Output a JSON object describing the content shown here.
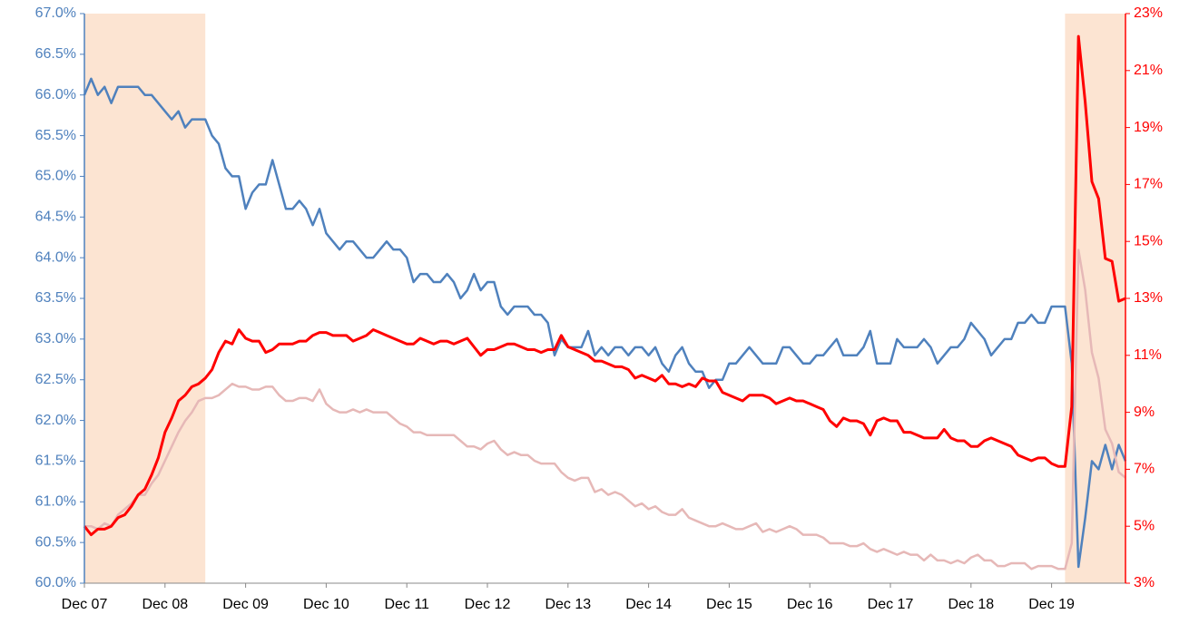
{
  "chart_data": {
    "type": "line",
    "categories": [
      "Dec 07",
      null,
      null,
      null,
      null,
      null,
      null,
      null,
      null,
      null,
      null,
      null,
      "Dec 08",
      null,
      null,
      null,
      null,
      null,
      null,
      null,
      null,
      null,
      null,
      null,
      "Dec 09",
      null,
      null,
      null,
      null,
      null,
      null,
      null,
      null,
      null,
      null,
      null,
      "Dec 10",
      null,
      null,
      null,
      null,
      null,
      null,
      null,
      null,
      null,
      null,
      null,
      "Dec 11",
      null,
      null,
      null,
      null,
      null,
      null,
      null,
      null,
      null,
      null,
      null,
      "Dec 12",
      null,
      null,
      null,
      null,
      null,
      null,
      null,
      null,
      null,
      null,
      null,
      "Dec 13",
      null,
      null,
      null,
      null,
      null,
      null,
      null,
      null,
      null,
      null,
      null,
      "Dec 14",
      null,
      null,
      null,
      null,
      null,
      null,
      null,
      null,
      null,
      null,
      null,
      "Dec 15",
      null,
      null,
      null,
      null,
      null,
      null,
      null,
      null,
      null,
      null,
      null,
      "Dec 16",
      null,
      null,
      null,
      null,
      null,
      null,
      null,
      null,
      null,
      null,
      null,
      "Dec 17",
      null,
      null,
      null,
      null,
      null,
      null,
      null,
      null,
      null,
      null,
      null,
      "Dec 18",
      null,
      null,
      null,
      null,
      null,
      null,
      null,
      null,
      null,
      null,
      null,
      "Dec 19",
      null,
      null,
      null,
      null,
      null,
      null,
      null,
      null,
      null,
      null,
      null
    ],
    "shaded_ranges": [
      [
        0,
        18
      ],
      [
        146,
        155
      ]
    ],
    "shade_color": "#fce4d2",
    "series": [
      {
        "color": "#4f81bd",
        "axis": "y",
        "values": [
          66.0,
          66.2,
          66.0,
          66.1,
          65.9,
          66.1,
          66.1,
          66.1,
          66.1,
          66.0,
          66.0,
          65.9,
          65.8,
          65.7,
          65.8,
          65.6,
          65.7,
          65.7,
          65.7,
          65.5,
          65.4,
          65.1,
          65.0,
          65.0,
          64.6,
          64.8,
          64.9,
          64.9,
          65.2,
          64.9,
          64.6,
          64.6,
          64.7,
          64.6,
          64.4,
          64.6,
          64.3,
          64.2,
          64.1,
          64.2,
          64.2,
          64.1,
          64.0,
          64.0,
          64.1,
          64.2,
          64.1,
          64.1,
          64.0,
          63.7,
          63.8,
          63.8,
          63.7,
          63.7,
          63.8,
          63.7,
          63.5,
          63.6,
          63.8,
          63.6,
          63.7,
          63.7,
          63.4,
          63.3,
          63.4,
          63.4,
          63.4,
          63.3,
          63.3,
          63.2,
          62.8,
          63.0,
          62.9,
          62.9,
          62.9,
          63.1,
          62.8,
          62.9,
          62.8,
          62.9,
          62.9,
          62.8,
          62.9,
          62.9,
          62.8,
          62.9,
          62.7,
          62.6,
          62.8,
          62.9,
          62.7,
          62.6,
          62.6,
          62.4,
          62.5,
          62.5,
          62.7,
          62.7,
          62.8,
          62.9,
          62.8,
          62.7,
          62.7,
          62.7,
          62.9,
          62.9,
          62.8,
          62.7,
          62.7,
          62.8,
          62.8,
          62.9,
          63.0,
          62.8,
          62.8,
          62.8,
          62.9,
          63.1,
          62.7,
          62.7,
          62.7,
          63.0,
          62.9,
          62.9,
          62.9,
          63.0,
          62.9,
          62.7,
          62.8,
          62.9,
          62.9,
          63.0,
          63.2,
          63.1,
          63.0,
          62.8,
          62.9,
          63.0,
          63.0,
          63.2,
          63.2,
          63.3,
          63.2,
          63.2,
          63.4,
          63.4,
          63.4,
          62.7,
          60.2,
          60.8,
          61.5,
          61.4,
          61.7,
          61.4,
          61.7,
          61.5
        ]
      },
      {
        "color": "#e6b8b7",
        "axis": "y2",
        "values": [
          5.0,
          5.0,
          4.9,
          5.1,
          5.0,
          5.4,
          5.6,
          5.8,
          6.1,
          6.1,
          6.5,
          6.8,
          7.3,
          7.8,
          8.3,
          8.7,
          9.0,
          9.4,
          9.5,
          9.5,
          9.6,
          9.8,
          10.0,
          9.9,
          9.9,
          9.8,
          9.8,
          9.9,
          9.9,
          9.6,
          9.4,
          9.4,
          9.5,
          9.5,
          9.4,
          9.8,
          9.3,
          9.1,
          9.0,
          9.0,
          9.1,
          9.0,
          9.1,
          9.0,
          9.0,
          9.0,
          8.8,
          8.6,
          8.5,
          8.3,
          8.3,
          8.2,
          8.2,
          8.2,
          8.2,
          8.2,
          8.0,
          7.8,
          7.8,
          7.7,
          7.9,
          8.0,
          7.7,
          7.5,
          7.6,
          7.5,
          7.5,
          7.3,
          7.2,
          7.2,
          7.2,
          6.9,
          6.7,
          6.6,
          6.7,
          6.7,
          6.2,
          6.3,
          6.1,
          6.2,
          6.1,
          5.9,
          5.7,
          5.8,
          5.6,
          5.7,
          5.5,
          5.4,
          5.4,
          5.6,
          5.3,
          5.2,
          5.1,
          5.0,
          5.0,
          5.1,
          5.0,
          4.9,
          4.9,
          5.0,
          5.1,
          4.8,
          4.9,
          4.8,
          4.9,
          5.0,
          4.9,
          4.7,
          4.7,
          4.7,
          4.6,
          4.4,
          4.4,
          4.4,
          4.3,
          4.3,
          4.4,
          4.2,
          4.1,
          4.2,
          4.1,
          4.0,
          4.1,
          4.0,
          4.0,
          3.8,
          4.0,
          3.8,
          3.8,
          3.7,
          3.8,
          3.7,
          3.9,
          4.0,
          3.8,
          3.8,
          3.6,
          3.6,
          3.7,
          3.7,
          3.7,
          3.5,
          3.6,
          3.6,
          3.6,
          3.5,
          3.5,
          4.4,
          14.7,
          13.3,
          11.1,
          10.2,
          8.4,
          7.9,
          6.9,
          6.7
        ]
      },
      {
        "color": "#ff0000",
        "axis": "y2",
        "values": [
          5.0,
          4.7,
          4.9,
          4.9,
          5.0,
          5.3,
          5.4,
          5.7,
          6.1,
          6.3,
          6.8,
          7.4,
          8.3,
          8.8,
          9.4,
          9.6,
          9.9,
          10.0,
          10.2,
          10.5,
          11.1,
          11.5,
          11.4,
          11.9,
          11.6,
          11.5,
          11.5,
          11.1,
          11.2,
          11.4,
          11.4,
          11.4,
          11.5,
          11.5,
          11.7,
          11.8,
          11.8,
          11.7,
          11.7,
          11.7,
          11.5,
          11.6,
          11.7,
          11.9,
          11.8,
          11.7,
          11.6,
          11.5,
          11.4,
          11.4,
          11.6,
          11.5,
          11.4,
          11.5,
          11.5,
          11.4,
          11.5,
          11.6,
          11.3,
          11.0,
          11.2,
          11.2,
          11.3,
          11.4,
          11.4,
          11.3,
          11.2,
          11.2,
          11.1,
          11.2,
          11.2,
          11.7,
          11.3,
          11.2,
          11.1,
          11.0,
          10.8,
          10.8,
          10.7,
          10.6,
          10.6,
          10.5,
          10.2,
          10.3,
          10.2,
          10.1,
          10.3,
          10.0,
          10.0,
          9.9,
          10.0,
          9.9,
          10.2,
          10.1,
          10.1,
          9.7,
          9.6,
          9.5,
          9.4,
          9.6,
          9.6,
          9.6,
          9.5,
          9.3,
          9.4,
          9.5,
          9.4,
          9.4,
          9.3,
          9.2,
          9.1,
          8.7,
          8.5,
          8.8,
          8.7,
          8.7,
          8.6,
          8.2,
          8.7,
          8.8,
          8.7,
          8.7,
          8.3,
          8.3,
          8.2,
          8.1,
          8.1,
          8.1,
          8.4,
          8.1,
          8.0,
          8.0,
          7.8,
          7.8,
          8.0,
          8.1,
          8.0,
          7.9,
          7.8,
          7.5,
          7.4,
          7.3,
          7.4,
          7.4,
          7.2,
          7.1,
          7.1,
          9.2,
          22.2,
          19.9,
          17.1,
          16.5,
          14.4,
          14.3,
          12.9,
          13.0
        ]
      }
    ],
    "ylim": [
      60.0,
      67.0
    ],
    "yticks": [
      {
        "value": 60.0,
        "label": "60.0%"
      },
      {
        "value": 60.5,
        "label": "60.5%"
      },
      {
        "value": 61.0,
        "label": "61.0%"
      },
      {
        "value": 61.5,
        "label": "61.5%"
      },
      {
        "value": 62.0,
        "label": "62.0%"
      },
      {
        "value": 62.5,
        "label": "62.5%"
      },
      {
        "value": 63.0,
        "label": "63.0%"
      },
      {
        "value": 63.5,
        "label": "63.5%"
      },
      {
        "value": 64.0,
        "label": "64.0%"
      },
      {
        "value": 64.5,
        "label": "64.5%"
      },
      {
        "value": 65.0,
        "label": "65.0%"
      },
      {
        "value": 65.5,
        "label": "65.5%"
      },
      {
        "value": 66.0,
        "label": "66.0%"
      },
      {
        "value": 66.5,
        "label": "66.5%"
      },
      {
        "value": 67.0,
        "label": "67.0%"
      }
    ],
    "y_color": "#4f81bd",
    "y2lim": [
      3,
      23
    ],
    "y2ticks": [
      {
        "value": 3,
        "label": "3%"
      },
      {
        "value": 5,
        "label": "5%"
      },
      {
        "value": 7,
        "label": "7%"
      },
      {
        "value": 9,
        "label": "9%"
      },
      {
        "value": 11,
        "label": "11%"
      },
      {
        "value": 13,
        "label": "13%"
      },
      {
        "value": 15,
        "label": "15%"
      },
      {
        "value": 17,
        "label": "17%"
      },
      {
        "value": 19,
        "label": "19%"
      },
      {
        "value": 21,
        "label": "21%"
      },
      {
        "value": 23,
        "label": "23%"
      }
    ],
    "y2_color": "#ff0000"
  }
}
